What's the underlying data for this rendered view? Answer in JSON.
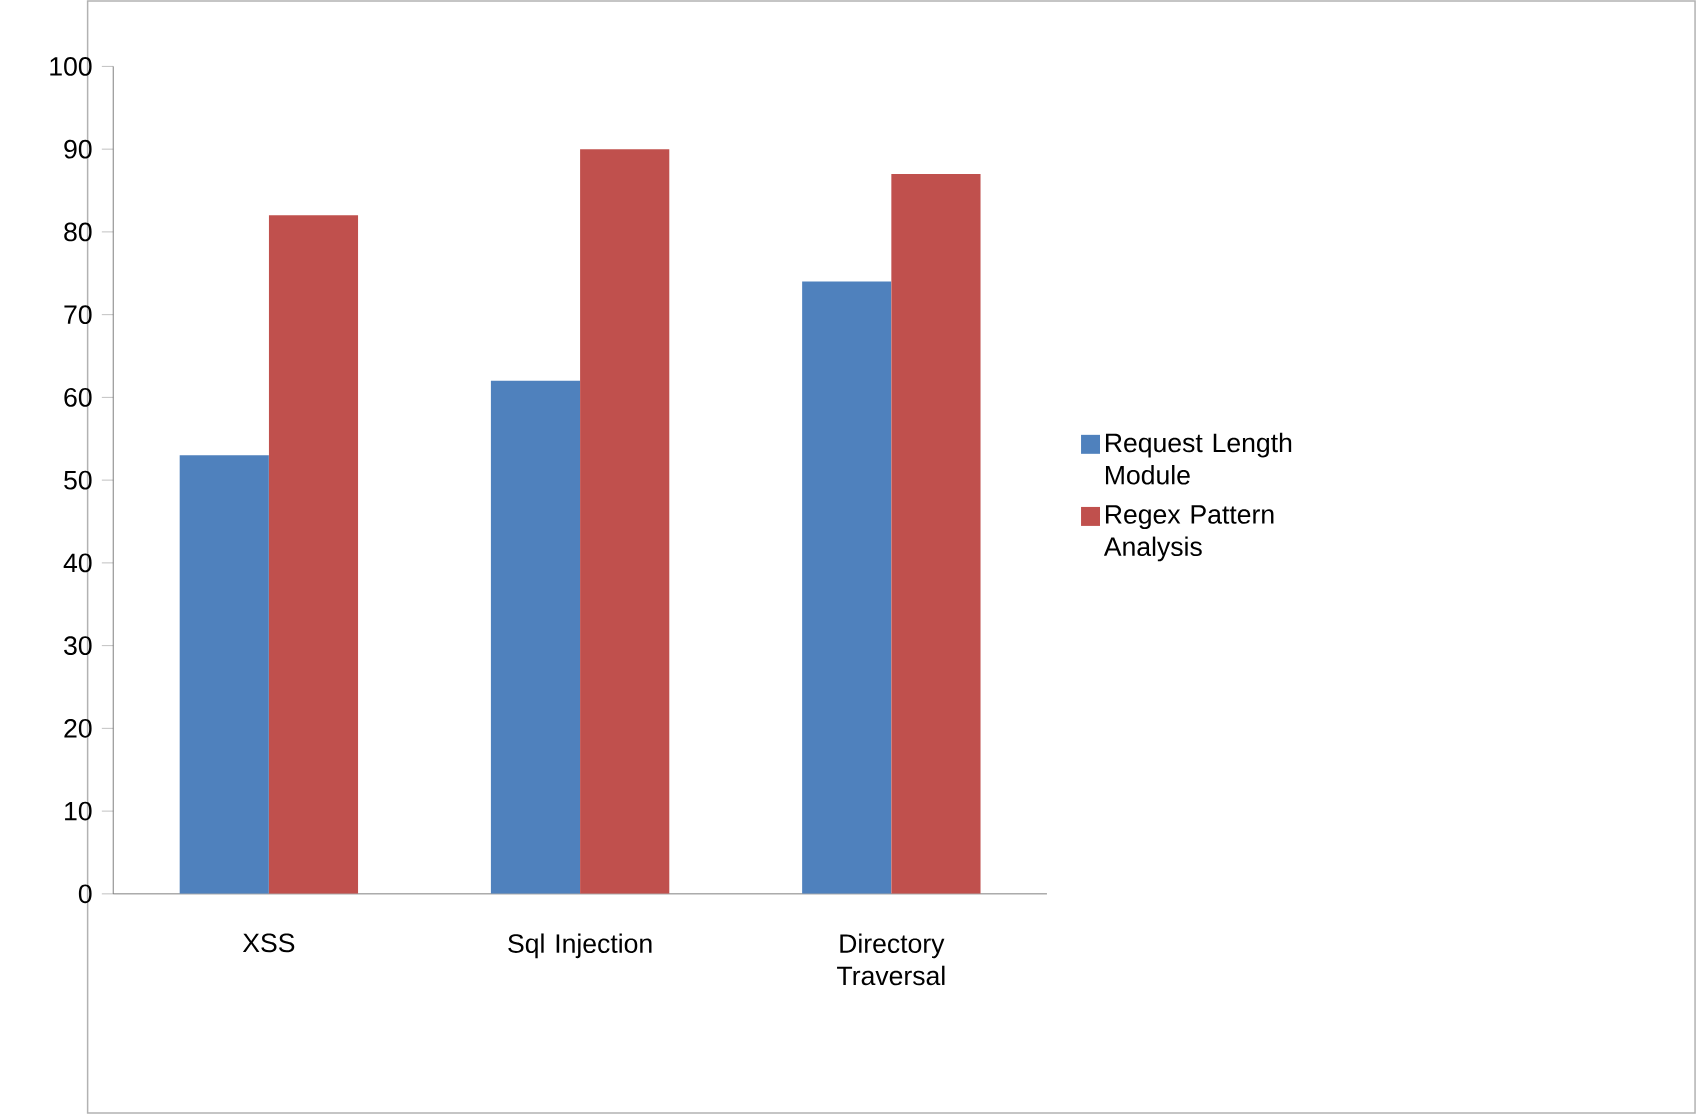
{
  "chart_data": {
    "type": "bar",
    "categories": [
      "XSS",
      "Sql Injection",
      "Directory Traversal"
    ],
    "series": [
      {
        "name": "Request Length Module",
        "color": "#4f81bd",
        "values": [
          53,
          62,
          74
        ]
      },
      {
        "name": "Regex Pattern Analysis",
        "color": "#c0504d",
        "values": [
          82,
          90,
          87
        ]
      }
    ],
    "ylim": [
      0,
      100
    ],
    "yticks": [
      0,
      10,
      20,
      30,
      40,
      50,
      60,
      70,
      80,
      90,
      100
    ],
    "legend": "right"
  }
}
